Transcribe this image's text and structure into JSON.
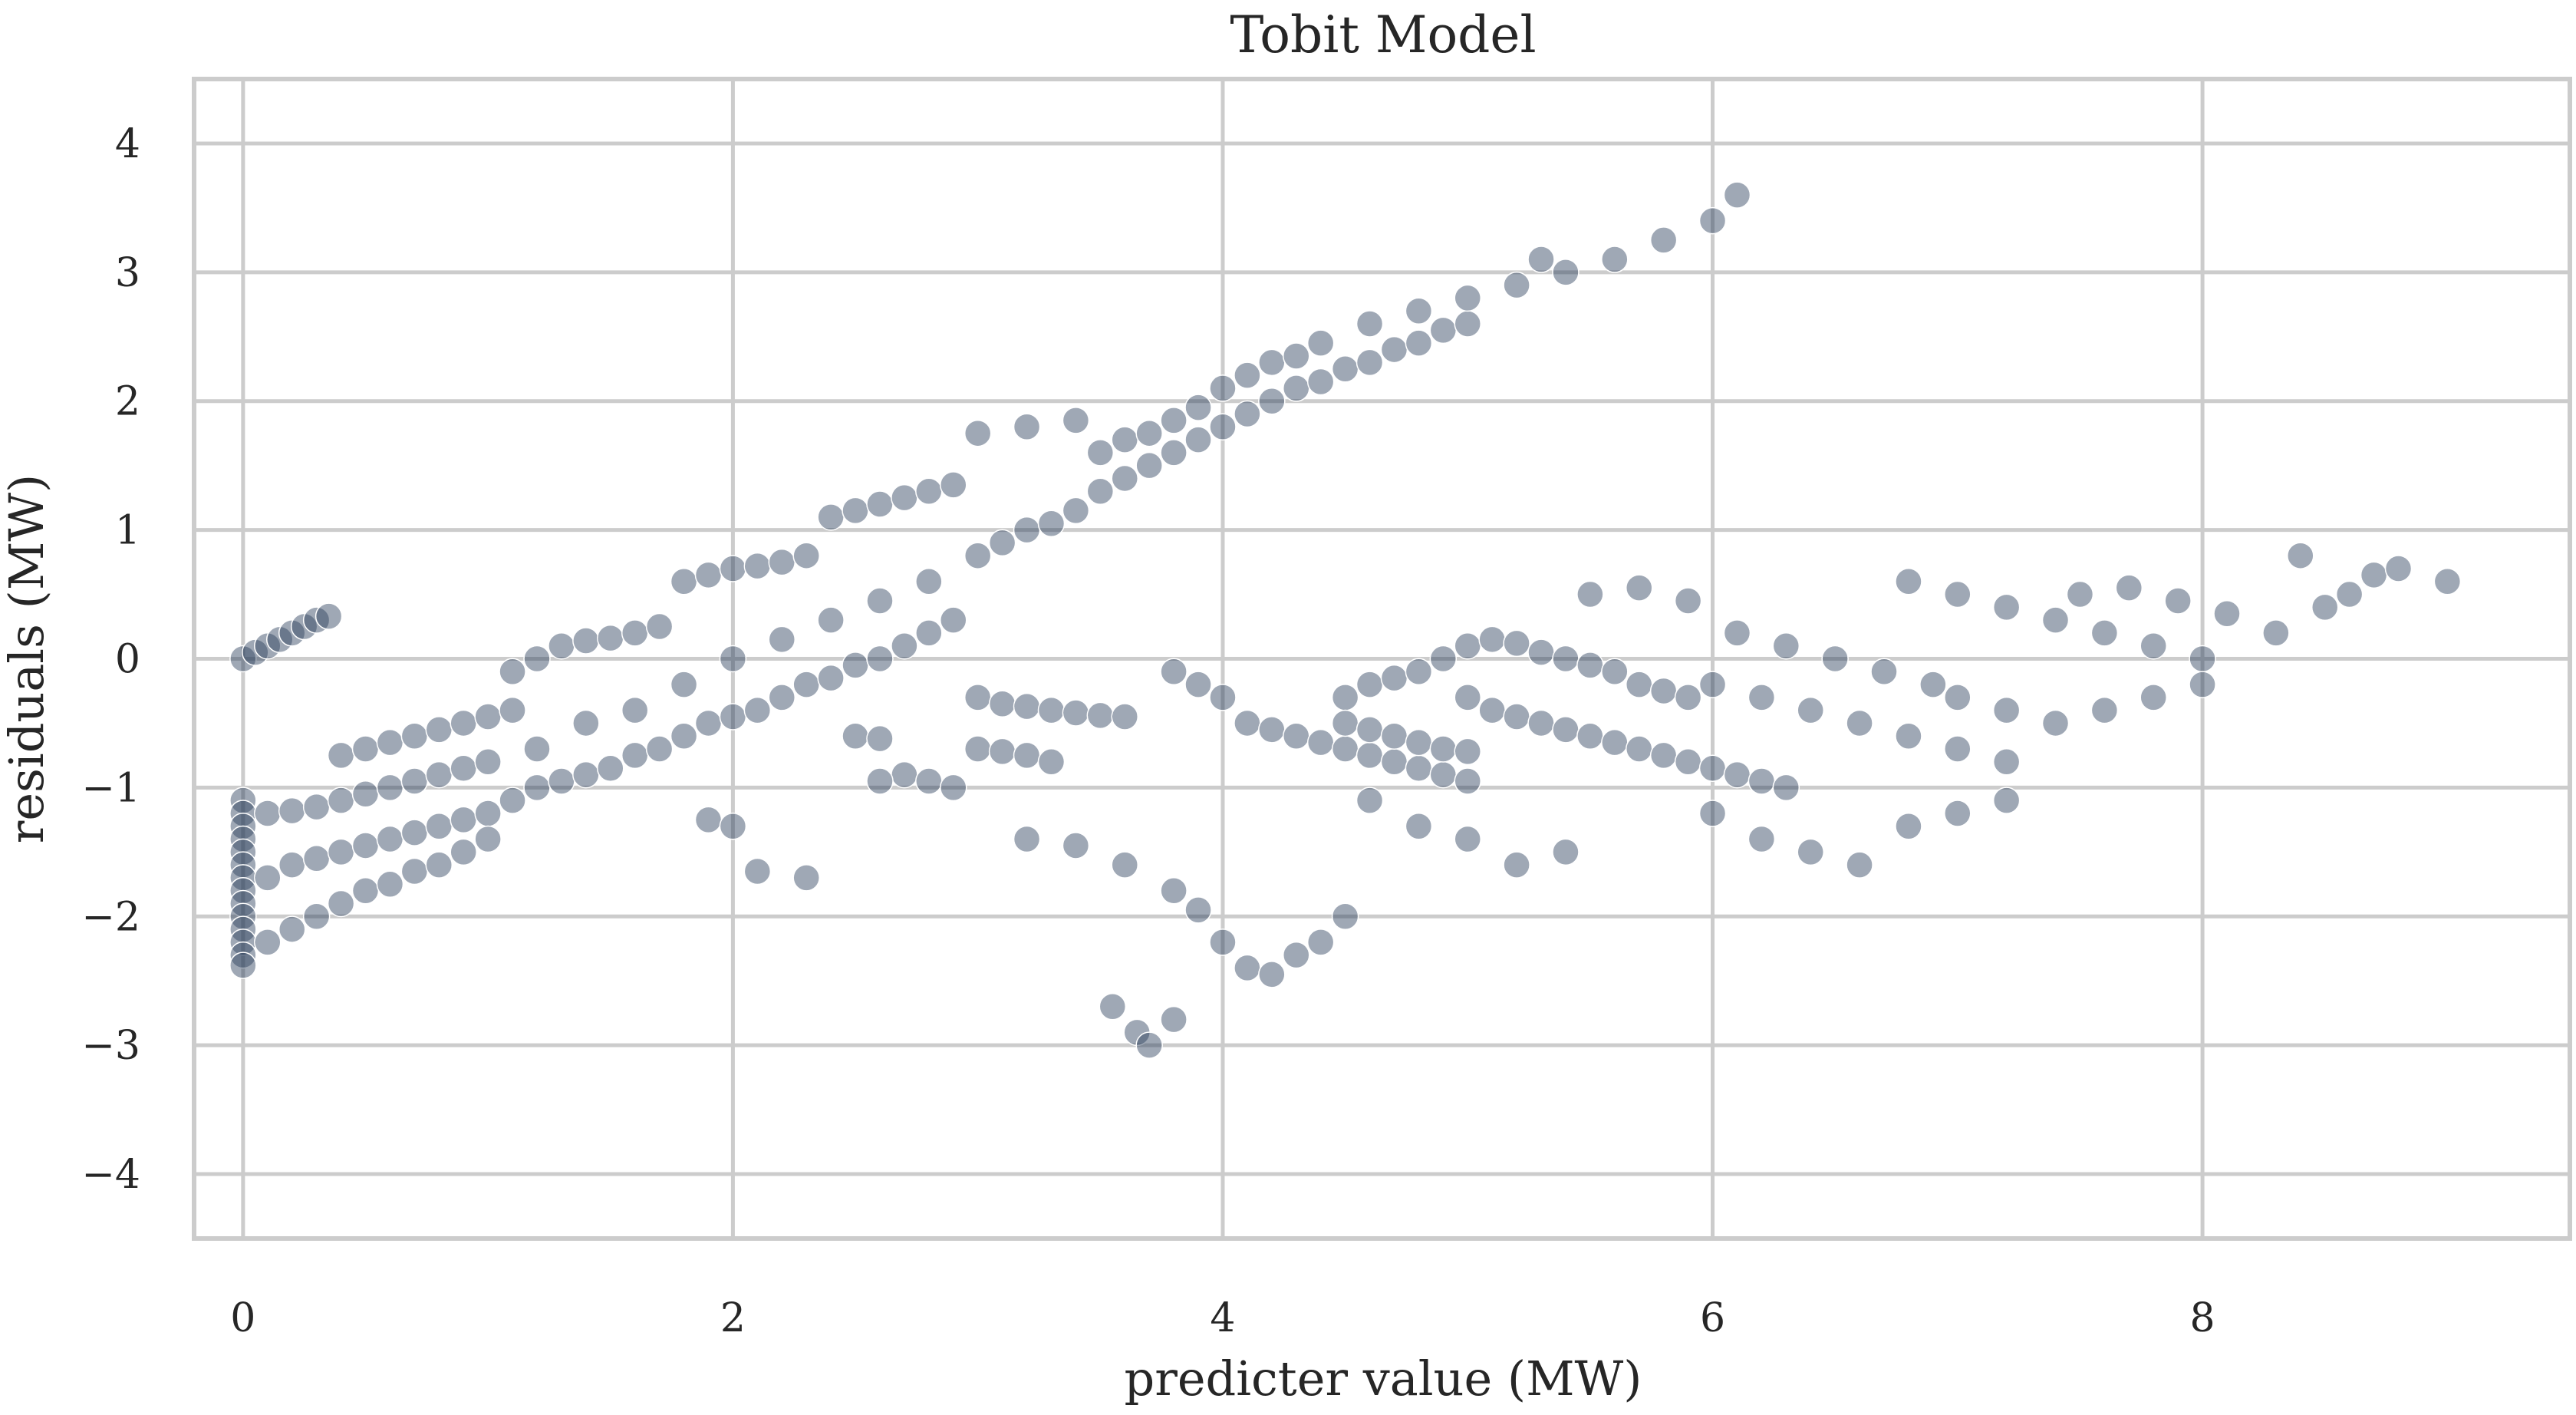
{
  "chart_data": {
    "type": "scatter",
    "title": "Tobit Model",
    "xlabel": "predicter value (MW)",
    "ylabel": "residuals (MW)",
    "xlim": [
      -0.2,
      9.5
    ],
    "ylim": [
      -4.5,
      4.5
    ],
    "xticks": [
      0,
      2,
      4,
      6,
      8
    ],
    "yticks": [
      -4,
      -3,
      -2,
      -1,
      0,
      1,
      2,
      3,
      4
    ],
    "xtick_labels": [
      "0",
      "2",
      "4",
      "6",
      "8"
    ],
    "ytick_labels": [
      "−4",
      "−3",
      "−2",
      "−1",
      "0",
      "1",
      "2",
      "3",
      "4"
    ],
    "grid": true,
    "marker_color": "#2b3d5b",
    "marker_alpha": 0.15,
    "series": [
      {
        "points": [
          [
            0.0,
            0.0
          ],
          [
            0.05,
            0.05
          ],
          [
            0.1,
            0.1
          ],
          [
            0.15,
            0.15
          ],
          [
            0.2,
            0.2
          ],
          [
            0.25,
            0.25
          ],
          [
            0.3,
            0.3
          ],
          [
            0.35,
            0.33
          ],
          [
            0.0,
            -1.1
          ],
          [
            0.0,
            -1.2
          ],
          [
            0.0,
            -1.3
          ],
          [
            0.0,
            -1.4
          ],
          [
            0.0,
            -1.5
          ],
          [
            0.0,
            -1.6
          ],
          [
            0.0,
            -1.7
          ],
          [
            0.0,
            -1.8
          ],
          [
            0.0,
            -1.9
          ],
          [
            0.0,
            -2.0
          ],
          [
            0.0,
            -2.1
          ],
          [
            0.0,
            -2.2
          ],
          [
            0.0,
            -2.3
          ],
          [
            0.0,
            -2.38
          ],
          [
            0.1,
            -1.2
          ],
          [
            0.2,
            -1.18
          ],
          [
            0.3,
            -1.15
          ],
          [
            0.4,
            -1.1
          ],
          [
            0.5,
            -1.05
          ],
          [
            0.6,
            -1.0
          ],
          [
            0.7,
            -0.95
          ],
          [
            0.8,
            -0.9
          ],
          [
            0.9,
            -0.85
          ],
          [
            1.0,
            -0.8
          ],
          [
            0.4,
            -0.75
          ],
          [
            0.5,
            -0.7
          ],
          [
            0.6,
            -0.65
          ],
          [
            0.7,
            -0.6
          ],
          [
            0.8,
            -0.55
          ],
          [
            0.9,
            -0.5
          ],
          [
            1.0,
            -0.45
          ],
          [
            1.1,
            -0.4
          ],
          [
            1.1,
            -0.1
          ],
          [
            1.2,
            0.0
          ],
          [
            1.3,
            0.1
          ],
          [
            1.4,
            0.14
          ],
          [
            1.5,
            0.16
          ],
          [
            1.6,
            0.2
          ],
          [
            1.7,
            0.25
          ],
          [
            1.8,
            0.6
          ],
          [
            1.9,
            0.65
          ],
          [
            2.0,
            0.7
          ],
          [
            2.1,
            0.72
          ],
          [
            2.2,
            0.75
          ],
          [
            2.3,
            0.8
          ],
          [
            2.4,
            1.1
          ],
          [
            2.5,
            1.15
          ],
          [
            2.6,
            1.2
          ],
          [
            2.7,
            1.25
          ],
          [
            2.8,
            1.3
          ],
          [
            2.9,
            1.35
          ],
          [
            3.0,
            1.75
          ],
          [
            3.2,
            1.8
          ],
          [
            3.4,
            1.85
          ],
          [
            0.1,
            -1.7
          ],
          [
            0.2,
            -1.6
          ],
          [
            0.3,
            -1.55
          ],
          [
            0.4,
            -1.5
          ],
          [
            0.5,
            -1.45
          ],
          [
            0.6,
            -1.4
          ],
          [
            0.7,
            -1.35
          ],
          [
            0.8,
            -1.3
          ],
          [
            0.9,
            -1.25
          ],
          [
            1.0,
            -1.2
          ],
          [
            1.1,
            -1.1
          ],
          [
            1.2,
            -1.0
          ],
          [
            1.3,
            -0.95
          ],
          [
            1.4,
            -0.9
          ],
          [
            1.5,
            -0.85
          ],
          [
            1.6,
            -0.75
          ],
          [
            1.7,
            -0.7
          ],
          [
            1.8,
            -0.6
          ],
          [
            1.9,
            -0.5
          ],
          [
            2.0,
            -0.45
          ],
          [
            2.1,
            -0.4
          ],
          [
            2.2,
            -0.3
          ],
          [
            2.3,
            -0.2
          ],
          [
            2.4,
            -0.15
          ],
          [
            2.5,
            -0.05
          ],
          [
            2.6,
            0.0
          ],
          [
            2.7,
            0.1
          ],
          [
            2.8,
            0.2
          ],
          [
            2.9,
            0.3
          ],
          [
            0.1,
            -2.2
          ],
          [
            0.2,
            -2.1
          ],
          [
            0.3,
            -2.0
          ],
          [
            0.4,
            -1.9
          ],
          [
            0.5,
            -1.8
          ],
          [
            0.6,
            -1.75
          ],
          [
            0.7,
            -1.65
          ],
          [
            0.8,
            -1.6
          ],
          [
            0.9,
            -1.5
          ],
          [
            1.0,
            -1.4
          ],
          [
            1.2,
            -0.7
          ],
          [
            1.4,
            -0.5
          ],
          [
            1.6,
            -0.4
          ],
          [
            1.8,
            -0.2
          ],
          [
            2.0,
            0.0
          ],
          [
            2.2,
            0.15
          ],
          [
            2.4,
            0.3
          ],
          [
            2.6,
            0.45
          ],
          [
            2.8,
            0.6
          ],
          [
            3.0,
            0.8
          ],
          [
            3.1,
            0.9
          ],
          [
            3.2,
            1.0
          ],
          [
            3.3,
            1.05
          ],
          [
            3.4,
            1.15
          ],
          [
            3.5,
            1.3
          ],
          [
            3.6,
            1.4
          ],
          [
            3.7,
            1.5
          ],
          [
            3.8,
            1.6
          ],
          [
            3.9,
            1.7
          ],
          [
            4.0,
            1.8
          ],
          [
            4.1,
            1.9
          ],
          [
            4.2,
            2.0
          ],
          [
            4.3,
            2.1
          ],
          [
            4.4,
            2.15
          ],
          [
            4.5,
            2.25
          ],
          [
            4.6,
            2.3
          ],
          [
            4.7,
            2.4
          ],
          [
            4.8,
            2.45
          ],
          [
            4.9,
            2.55
          ],
          [
            5.0,
            2.6
          ],
          [
            3.5,
            1.6
          ],
          [
            3.6,
            1.7
          ],
          [
            3.7,
            1.75
          ],
          [
            3.8,
            1.85
          ],
          [
            3.9,
            1.95
          ],
          [
            4.0,
            2.1
          ],
          [
            4.1,
            2.2
          ],
          [
            4.2,
            2.3
          ],
          [
            4.3,
            2.35
          ],
          [
            4.4,
            2.45
          ],
          [
            4.6,
            2.6
          ],
          [
            4.8,
            2.7
          ],
          [
            5.0,
            2.8
          ],
          [
            5.2,
            2.9
          ],
          [
            5.3,
            3.1
          ],
          [
            5.4,
            3.0
          ],
          [
            5.6,
            3.1
          ],
          [
            5.8,
            3.25
          ],
          [
            6.0,
            3.4
          ],
          [
            6.1,
            3.6
          ],
          [
            2.5,
            -0.6
          ],
          [
            2.6,
            -0.62
          ],
          [
            2.7,
            -0.9
          ],
          [
            2.8,
            -0.95
          ],
          [
            2.9,
            -1.0
          ],
          [
            2.6,
            -0.95
          ],
          [
            1.9,
            -1.25
          ],
          [
            2.0,
            -1.3
          ],
          [
            2.1,
            -1.65
          ],
          [
            2.3,
            -1.7
          ],
          [
            3.0,
            -0.3
          ],
          [
            3.1,
            -0.35
          ],
          [
            3.2,
            -0.37
          ],
          [
            3.3,
            -0.4
          ],
          [
            3.4,
            -0.42
          ],
          [
            3.5,
            -0.44
          ],
          [
            3.6,
            -0.45
          ],
          [
            3.0,
            -0.7
          ],
          [
            3.1,
            -0.72
          ],
          [
            3.2,
            -0.75
          ],
          [
            3.3,
            -0.8
          ],
          [
            3.2,
            -1.4
          ],
          [
            3.4,
            -1.45
          ],
          [
            3.6,
            -1.6
          ],
          [
            3.8,
            -1.8
          ],
          [
            3.9,
            -1.95
          ],
          [
            4.0,
            -2.2
          ],
          [
            4.1,
            -2.4
          ],
          [
            4.2,
            -2.45
          ],
          [
            4.3,
            -2.3
          ],
          [
            4.4,
            -2.2
          ],
          [
            4.5,
            -2.0
          ],
          [
            3.55,
            -2.7
          ],
          [
            3.65,
            -2.9
          ],
          [
            3.7,
            -3.0
          ],
          [
            3.8,
            -2.8
          ],
          [
            3.8,
            -0.1
          ],
          [
            3.9,
            -0.2
          ],
          [
            4.0,
            -0.3
          ],
          [
            4.1,
            -0.5
          ],
          [
            4.2,
            -0.55
          ],
          [
            4.3,
            -0.6
          ],
          [
            4.4,
            -0.65
          ],
          [
            4.5,
            -0.7
          ],
          [
            4.6,
            -0.75
          ],
          [
            4.7,
            -0.8
          ],
          [
            4.8,
            -0.85
          ],
          [
            4.9,
            -0.9
          ],
          [
            5.0,
            -0.95
          ],
          [
            4.5,
            -0.3
          ],
          [
            4.6,
            -0.2
          ],
          [
            4.7,
            -0.15
          ],
          [
            4.8,
            -0.1
          ],
          [
            4.9,
            0.0
          ],
          [
            5.0,
            0.1
          ],
          [
            5.1,
            0.15
          ],
          [
            5.2,
            0.12
          ],
          [
            5.3,
            0.05
          ],
          [
            5.4,
            0.0
          ],
          [
            5.5,
            -0.05
          ],
          [
            5.6,
            -0.1
          ],
          [
            5.7,
            -0.2
          ],
          [
            5.8,
            -0.25
          ],
          [
            5.9,
            -0.3
          ],
          [
            4.5,
            -0.5
          ],
          [
            4.6,
            -0.55
          ],
          [
            4.7,
            -0.6
          ],
          [
            4.8,
            -0.65
          ],
          [
            4.9,
            -0.7
          ],
          [
            5.0,
            -0.72
          ],
          [
            4.6,
            -1.1
          ],
          [
            4.8,
            -1.3
          ],
          [
            5.0,
            -1.4
          ],
          [
            5.2,
            -1.6
          ],
          [
            5.4,
            -1.5
          ],
          [
            5.0,
            -0.3
          ],
          [
            5.1,
            -0.4
          ],
          [
            5.2,
            -0.45
          ],
          [
            5.3,
            -0.5
          ],
          [
            5.4,
            -0.55
          ],
          [
            5.5,
            -0.6
          ],
          [
            5.6,
            -0.65
          ],
          [
            5.7,
            -0.7
          ],
          [
            5.8,
            -0.75
          ],
          [
            5.9,
            -0.8
          ],
          [
            6.0,
            -0.85
          ],
          [
            6.1,
            -0.9
          ],
          [
            6.2,
            -0.95
          ],
          [
            6.3,
            -1.0
          ],
          [
            5.5,
            0.5
          ],
          [
            5.7,
            0.55
          ],
          [
            5.9,
            0.45
          ],
          [
            6.1,
            0.2
          ],
          [
            6.3,
            0.1
          ],
          [
            6.5,
            0.0
          ],
          [
            6.7,
            -0.1
          ],
          [
            6.9,
            -0.2
          ],
          [
            6.0,
            -0.2
          ],
          [
            6.2,
            -0.3
          ],
          [
            6.4,
            -0.4
          ],
          [
            6.6,
            -0.5
          ],
          [
            6.8,
            -0.6
          ],
          [
            7.0,
            -0.7
          ],
          [
            7.2,
            -0.8
          ],
          [
            6.0,
            -1.2
          ],
          [
            6.2,
            -1.4
          ],
          [
            6.4,
            -1.5
          ],
          [
            6.6,
            -1.6
          ],
          [
            6.8,
            -1.3
          ],
          [
            7.0,
            -1.2
          ],
          [
            7.2,
            -1.1
          ],
          [
            6.8,
            0.6
          ],
          [
            7.0,
            0.5
          ],
          [
            7.2,
            0.4
          ],
          [
            7.4,
            0.3
          ],
          [
            7.6,
            0.2
          ],
          [
            7.8,
            0.1
          ],
          [
            8.0,
            0.0
          ],
          [
            7.0,
            -0.3
          ],
          [
            7.2,
            -0.4
          ],
          [
            7.4,
            -0.5
          ],
          [
            7.6,
            -0.4
          ],
          [
            7.8,
            -0.3
          ],
          [
            8.0,
            -0.2
          ],
          [
            7.5,
            0.5
          ],
          [
            7.7,
            0.55
          ],
          [
            7.9,
            0.45
          ],
          [
            8.1,
            0.35
          ],
          [
            8.3,
            0.2
          ],
          [
            8.5,
            0.4
          ],
          [
            8.6,
            0.5
          ],
          [
            8.7,
            0.65
          ],
          [
            8.4,
            0.8
          ],
          [
            8.8,
            0.7
          ],
          [
            9.0,
            0.6
          ]
        ]
      }
    ]
  }
}
